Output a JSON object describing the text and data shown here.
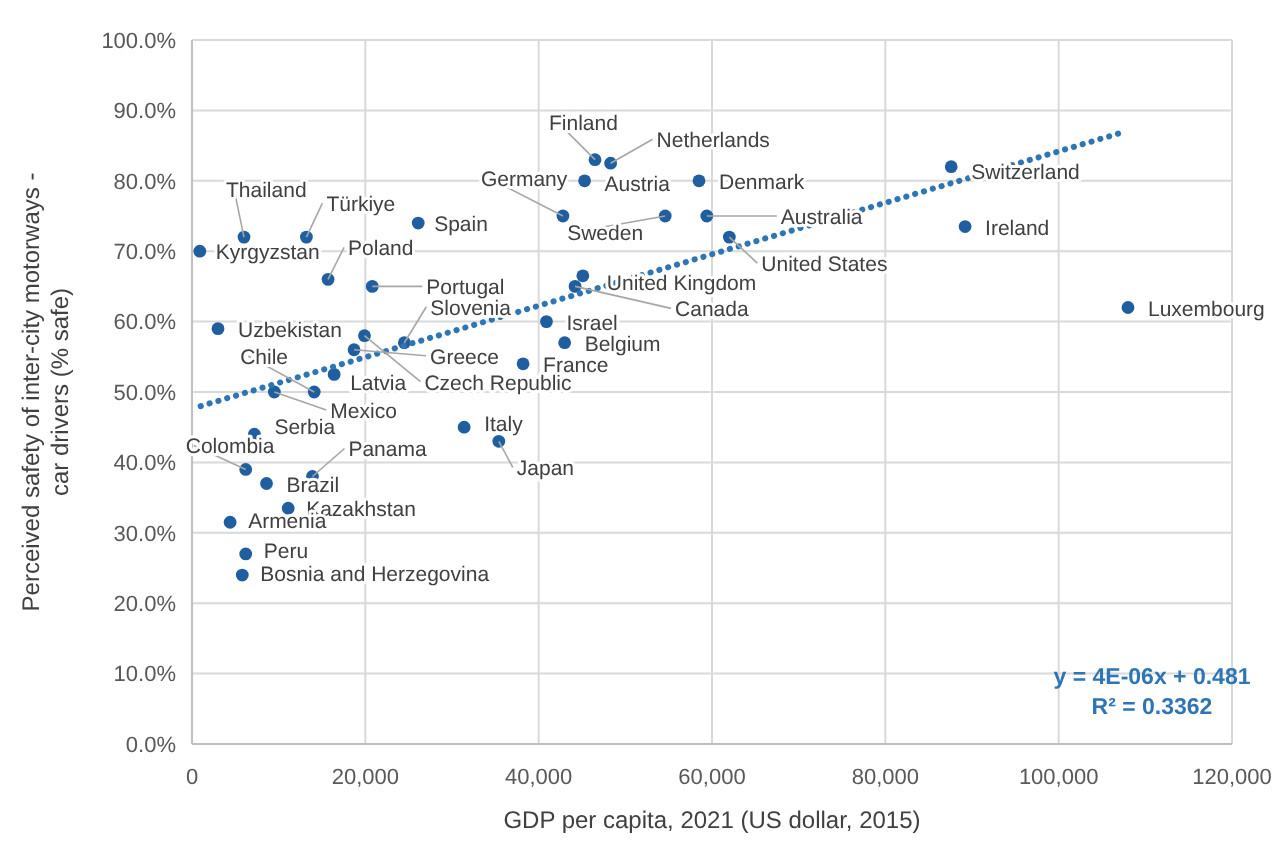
{
  "chart_data": {
    "type": "scatter",
    "xlabel": "GDP per capita, 2021 (US dollar, 2015)",
    "ylabel": "Perceived safety of inter-city motorways - car drivers (% safe)",
    "xlim": [
      0,
      120000
    ],
    "xticks": [
      {
        "value": 0,
        "label": "0"
      },
      {
        "value": 20000,
        "label": "20,000"
      },
      {
        "value": 40000,
        "label": "40,000"
      },
      {
        "value": 60000,
        "label": "60,000"
      },
      {
        "value": 80000,
        "label": "80,000"
      },
      {
        "value": 100000,
        "label": "100,000"
      },
      {
        "value": 120000,
        "label": "120,000"
      }
    ],
    "ylim": [
      0,
      100
    ],
    "yticks": [
      {
        "value": 0,
        "label": "0.0%"
      },
      {
        "value": 10,
        "label": "10.0%"
      },
      {
        "value": 20,
        "label": "20.0%"
      },
      {
        "value": 30,
        "label": "30.0%"
      },
      {
        "value": 40,
        "label": "40.0%"
      },
      {
        "value": 50,
        "label": "50.0%"
      },
      {
        "value": 60,
        "label": "60.0%"
      },
      {
        "value": 70,
        "label": "70.0%"
      },
      {
        "value": 80,
        "label": "80.0%"
      },
      {
        "value": 90,
        "label": "90.0%"
      },
      {
        "value": 100,
        "label": "100.0%"
      }
    ],
    "grid": true,
    "marker": "circle",
    "series": [
      {
        "type": "scatter",
        "color": "#1f5fa0",
        "x": [
          900,
          6000,
          13200,
          15700,
          26100,
          20800,
          3000,
          24500,
          19900,
          18700,
          16400,
          14100,
          9500,
          42800,
          46500,
          48300,
          45300,
          54600,
          58500,
          59400,
          62000,
          87600,
          89200,
          108000,
          45100,
          44200,
          40900,
          43000,
          38200,
          31400,
          35400,
          7200,
          6200,
          8600,
          13900,
          11100,
          4400,
          6200,
          5800
        ],
        "values": [
          70,
          72,
          72,
          66,
          74,
          65,
          59,
          57,
          58,
          56,
          52.5,
          50,
          50,
          75,
          83,
          82.5,
          80,
          75,
          80,
          75,
          72,
          82,
          73.5,
          62,
          66.5,
          65,
          60,
          57,
          54,
          45,
          43,
          44,
          39,
          37,
          38,
          33.5,
          31.5,
          27,
          24
        ]
      },
      {
        "type": "line",
        "color": "#2e75b6",
        "line_style": "dotted",
        "marker": "none",
        "x": [
          1000,
          107700
        ],
        "values": [
          48,
          87
        ]
      }
    ],
    "annotations": [
      {
        "text": "Kyrgyzstan",
        "x": 900,
        "y": 70
      },
      {
        "text": "Thailand",
        "x": 6000,
        "y": 72
      },
      {
        "text": "Türkiye",
        "x": 13200,
        "y": 72
      },
      {
        "text": "Poland",
        "x": 15700,
        "y": 66
      },
      {
        "text": "Spain",
        "x": 26100,
        "y": 74
      },
      {
        "text": "Portugal",
        "x": 20800,
        "y": 65
      },
      {
        "text": "Uzbekistan",
        "x": 3000,
        "y": 59
      },
      {
        "text": "Slovenia",
        "x": 24500,
        "y": 57
      },
      {
        "text": "Czech Republic",
        "x": 19900,
        "y": 58
      },
      {
        "text": "Greece",
        "x": 18700,
        "y": 56
      },
      {
        "text": "Latvia",
        "x": 16400,
        "y": 52.5
      },
      {
        "text": "Chile",
        "x": 14100,
        "y": 50
      },
      {
        "text": "Mexico",
        "x": 9500,
        "y": 50
      },
      {
        "text": "Germany",
        "x": 42800,
        "y": 75
      },
      {
        "text": "Finland",
        "x": 46500,
        "y": 83
      },
      {
        "text": "Netherlands",
        "x": 48300,
        "y": 82.5
      },
      {
        "text": "Austria",
        "x": 45300,
        "y": 80
      },
      {
        "text": "Sweden",
        "x": 54600,
        "y": 75
      },
      {
        "text": "Denmark",
        "x": 58500,
        "y": 80
      },
      {
        "text": "Australia",
        "x": 59400,
        "y": 75
      },
      {
        "text": "United States",
        "x": 62000,
        "y": 72
      },
      {
        "text": "Switzerland",
        "x": 87600,
        "y": 82
      },
      {
        "text": "Ireland",
        "x": 89200,
        "y": 73.5
      },
      {
        "text": "Luxembourg",
        "x": 108000,
        "y": 62
      },
      {
        "text": "United Kingdom",
        "x": 45100,
        "y": 66.5
      },
      {
        "text": "Canada",
        "x": 44200,
        "y": 65
      },
      {
        "text": "Israel",
        "x": 40900,
        "y": 60
      },
      {
        "text": "Belgium",
        "x": 43000,
        "y": 57
      },
      {
        "text": "France",
        "x": 38200,
        "y": 54
      },
      {
        "text": "Italy",
        "x": 31400,
        "y": 45
      },
      {
        "text": "Japan",
        "x": 35400,
        "y": 43
      },
      {
        "text": "Serbia",
        "x": 7200,
        "y": 44
      },
      {
        "text": "Colombia",
        "x": 6200,
        "y": 39
      },
      {
        "text": "Brazil",
        "x": 8600,
        "y": 37
      },
      {
        "text": "Panama",
        "x": 13900,
        "y": 38
      },
      {
        "text": "Kazakhstan",
        "x": 11100,
        "y": 33.5
      },
      {
        "text": "Armenia",
        "x": 4400,
        "y": 31.5
      },
      {
        "text": "Peru",
        "x": 6200,
        "y": 27
      },
      {
        "text": "Bosnia and Herzegovina",
        "x": 5800,
        "y": 24
      },
      "y = 4E-06x + 0.481",
      "R² = 0.3362"
    ]
  }
}
